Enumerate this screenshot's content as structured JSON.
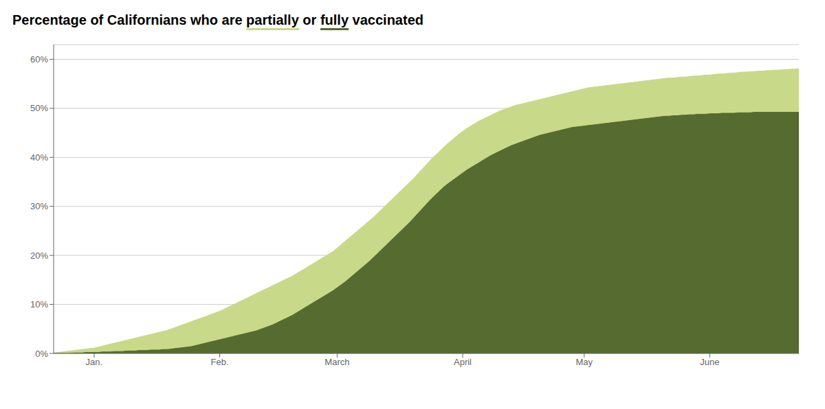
{
  "chart_data": {
    "type": "area",
    "title": "Percentage of Californians who are partially or fully vaccinated",
    "x": [
      0,
      1,
      2,
      3,
      4,
      5,
      6,
      7,
      8,
      9,
      10,
      11,
      12,
      13,
      14,
      15,
      16,
      17,
      18,
      19,
      20,
      21,
      22,
      23,
      24,
      25,
      26,
      27,
      28,
      29,
      30,
      31,
      32,
      33,
      34,
      35,
      36,
      37,
      38,
      39,
      40,
      41,
      42,
      43,
      44,
      45,
      46,
      47,
      48,
      49,
      50,
      51,
      52,
      53,
      54,
      55,
      56,
      57,
      58,
      59,
      60,
      61,
      62,
      63,
      64,
      65,
      66,
      67,
      68,
      69,
      70,
      71,
      72,
      73,
      74,
      75,
      76,
      77,
      78,
      79,
      80,
      81,
      82,
      83,
      84,
      85,
      86,
      87,
      88,
      89,
      90,
      91,
      92,
      93,
      94,
      95,
      96,
      97,
      98,
      99,
      100,
      101,
      102,
      103,
      104,
      105,
      106,
      107,
      108,
      109,
      110,
      111,
      112,
      113,
      114,
      115,
      116,
      117,
      118,
      119,
      120,
      121,
      122,
      123,
      124,
      125,
      126,
      127,
      128,
      129,
      130,
      131,
      132,
      133,
      134,
      135,
      136,
      137,
      138,
      139,
      140,
      141,
      142,
      143,
      144,
      145,
      146,
      147,
      148,
      149,
      150,
      151,
      152,
      153,
      154,
      155,
      156,
      157,
      158,
      159,
      160,
      161,
      162,
      163,
      164,
      165,
      166,
      167,
      168,
      169,
      170,
      171,
      172,
      173,
      174,
      175,
      176,
      177,
      178,
      179,
      180,
      181,
      182,
      183,
      184
    ],
    "series": [
      {
        "name": "partially",
        "color": "#c8d98a",
        "values": [
          0.001,
          0.002,
          0.003,
          0.004,
          0.005,
          0.006,
          0.007,
          0.008,
          0.009,
          0.01,
          0.011,
          0.013,
          0.015,
          0.017,
          0.019,
          0.021,
          0.023,
          0.025,
          0.027,
          0.029,
          0.031,
          0.033,
          0.035,
          0.037,
          0.039,
          0.041,
          0.043,
          0.045,
          0.047,
          0.05,
          0.053,
          0.056,
          0.059,
          0.062,
          0.065,
          0.068,
          0.071,
          0.074,
          0.077,
          0.08,
          0.083,
          0.086,
          0.09,
          0.094,
          0.098,
          0.102,
          0.106,
          0.11,
          0.114,
          0.118,
          0.122,
          0.126,
          0.13,
          0.134,
          0.138,
          0.142,
          0.146,
          0.15,
          0.154,
          0.158,
          0.163,
          0.168,
          0.173,
          0.178,
          0.183,
          0.188,
          0.193,
          0.198,
          0.203,
          0.208,
          0.215,
          0.222,
          0.229,
          0.236,
          0.243,
          0.25,
          0.257,
          0.264,
          0.271,
          0.278,
          0.286,
          0.294,
          0.302,
          0.31,
          0.318,
          0.326,
          0.334,
          0.342,
          0.35,
          0.358,
          0.367,
          0.376,
          0.385,
          0.394,
          0.402,
          0.41,
          0.418,
          0.426,
          0.433,
          0.44,
          0.447,
          0.453,
          0.459,
          0.464,
          0.469,
          0.474,
          0.478,
          0.482,
          0.486,
          0.49,
          0.494,
          0.497,
          0.5,
          0.503,
          0.506,
          0.508,
          0.51,
          0.512,
          0.514,
          0.516,
          0.518,
          0.52,
          0.522,
          0.524,
          0.526,
          0.528,
          0.53,
          0.532,
          0.534,
          0.536,
          0.538,
          0.54,
          0.542,
          0.543,
          0.544,
          0.545,
          0.546,
          0.547,
          0.548,
          0.549,
          0.55,
          0.551,
          0.552,
          0.553,
          0.554,
          0.555,
          0.556,
          0.557,
          0.558,
          0.559,
          0.56,
          0.561,
          0.562,
          0.562,
          0.563,
          0.564,
          0.564,
          0.565,
          0.566,
          0.566,
          0.567,
          0.568,
          0.568,
          0.569,
          0.57,
          0.57,
          0.571,
          0.572,
          0.572,
          0.573,
          0.574,
          0.574,
          0.575,
          0.575,
          0.576,
          0.576,
          0.577,
          0.577,
          0.578,
          0.578,
          0.579,
          0.579,
          0.58,
          0.58,
          0.581
        ]
      },
      {
        "name": "fully",
        "color": "#556b2f",
        "values": [
          0.0,
          0.0,
          0.0,
          0.0,
          0.0,
          0.001,
          0.001,
          0.001,
          0.002,
          0.002,
          0.002,
          0.002,
          0.003,
          0.003,
          0.003,
          0.004,
          0.004,
          0.004,
          0.005,
          0.005,
          0.005,
          0.006,
          0.006,
          0.006,
          0.007,
          0.007,
          0.007,
          0.008,
          0.008,
          0.009,
          0.01,
          0.011,
          0.012,
          0.013,
          0.014,
          0.016,
          0.018,
          0.02,
          0.022,
          0.024,
          0.026,
          0.028,
          0.03,
          0.032,
          0.034,
          0.036,
          0.038,
          0.04,
          0.042,
          0.044,
          0.046,
          0.049,
          0.052,
          0.055,
          0.058,
          0.062,
          0.066,
          0.07,
          0.074,
          0.078,
          0.083,
          0.088,
          0.093,
          0.098,
          0.103,
          0.108,
          0.113,
          0.118,
          0.123,
          0.128,
          0.134,
          0.14,
          0.146,
          0.153,
          0.16,
          0.167,
          0.174,
          0.181,
          0.188,
          0.196,
          0.204,
          0.212,
          0.22,
          0.228,
          0.236,
          0.244,
          0.252,
          0.26,
          0.268,
          0.277,
          0.286,
          0.295,
          0.304,
          0.313,
          0.321,
          0.329,
          0.337,
          0.344,
          0.35,
          0.356,
          0.362,
          0.368,
          0.374,
          0.379,
          0.384,
          0.389,
          0.394,
          0.399,
          0.404,
          0.408,
          0.412,
          0.416,
          0.42,
          0.424,
          0.427,
          0.43,
          0.433,
          0.436,
          0.439,
          0.442,
          0.445,
          0.447,
          0.449,
          0.451,
          0.453,
          0.455,
          0.457,
          0.459,
          0.461,
          0.462,
          0.463,
          0.464,
          0.465,
          0.466,
          0.467,
          0.468,
          0.469,
          0.47,
          0.471,
          0.472,
          0.473,
          0.474,
          0.475,
          0.476,
          0.477,
          0.478,
          0.479,
          0.48,
          0.481,
          0.482,
          0.483,
          0.484,
          0.484,
          0.485,
          0.485,
          0.486,
          0.486,
          0.487,
          0.487,
          0.488,
          0.488,
          0.488,
          0.489,
          0.489,
          0.489,
          0.49,
          0.49,
          0.49,
          0.49,
          0.491,
          0.491,
          0.491,
          0.491,
          0.492,
          0.492,
          0.492,
          0.492,
          0.492,
          0.492,
          0.492,
          0.492,
          0.492,
          0.492,
          0.492,
          0.492
        ]
      }
    ],
    "xlim": [
      0,
      184
    ],
    "xticks": [
      {
        "value": 10,
        "label": "Jan."
      },
      {
        "value": 41,
        "label": "Feb."
      },
      {
        "value": 70,
        "label": "March"
      },
      {
        "value": 101,
        "label": "April"
      },
      {
        "value": 131,
        "label": "May"
      },
      {
        "value": 162,
        "label": "June"
      }
    ],
    "ylim": [
      0,
      0.63
    ],
    "yticks": [
      {
        "value": 0.0,
        "label": "0%"
      },
      {
        "value": 0.1,
        "label": "10%"
      },
      {
        "value": 0.2,
        "label": "20%"
      },
      {
        "value": 0.3,
        "label": "30%"
      },
      {
        "value": 0.4,
        "label": "40%"
      },
      {
        "value": 0.5,
        "label": "50%"
      },
      {
        "value": 0.6,
        "label": "60%"
      }
    ],
    "grid": true,
    "stacked": false
  }
}
